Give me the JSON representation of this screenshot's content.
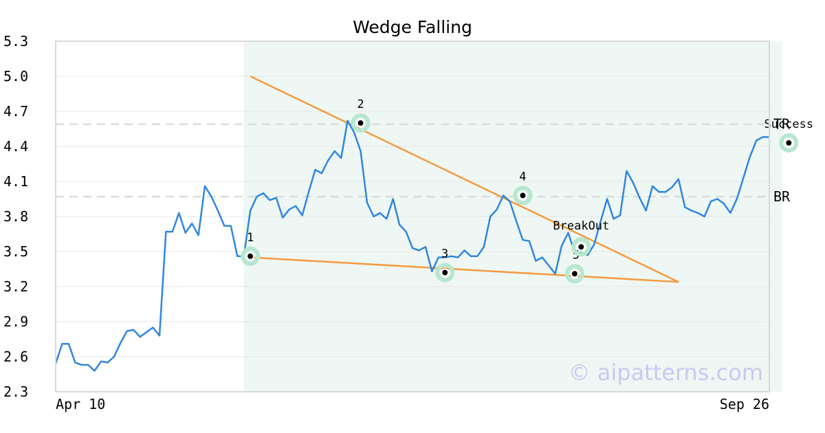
{
  "chart_data": {
    "type": "line",
    "title": "Wedge Falling",
    "xlabel": "",
    "ylabel": "",
    "x_start_label": "Apr 10",
    "x_end_label": "Sep 26",
    "ylim": [
      2.3,
      5.3
    ],
    "yticks": [
      "5.3",
      "5.0",
      "4.7",
      "4.4",
      "4.1",
      "3.8",
      "3.5",
      "3.2",
      "2.9",
      "2.6",
      "2.3"
    ],
    "grid": true,
    "series": [
      {
        "values": [
          2.54,
          2.71,
          2.71,
          2.55,
          2.53,
          2.53,
          2.48,
          2.56,
          2.55,
          2.6,
          2.72,
          2.82,
          2.83,
          2.77,
          2.81,
          2.85,
          2.78,
          3.67,
          3.67,
          3.83,
          3.66,
          3.74,
          3.64,
          4.06,
          3.97,
          3.85,
          3.72,
          3.72,
          3.46,
          3.46,
          3.85,
          3.97,
          4.0,
          3.94,
          3.96,
          3.79,
          3.86,
          3.89,
          3.81,
          4.01,
          4.2,
          4.17,
          4.28,
          4.36,
          4.3,
          4.62,
          4.52,
          4.36,
          3.92,
          3.8,
          3.83,
          3.78,
          3.95,
          3.73,
          3.67,
          3.53,
          3.51,
          3.54,
          3.33,
          3.45,
          3.45,
          3.46,
          3.45,
          3.51,
          3.46,
          3.46,
          3.54,
          3.8,
          3.86,
          3.98,
          3.93,
          3.76,
          3.6,
          3.59,
          3.42,
          3.45,
          3.38,
          3.31,
          3.55,
          3.66,
          3.49,
          3.49,
          3.47,
          3.56,
          3.76,
          3.95,
          3.78,
          3.81,
          4.19,
          4.09,
          3.96,
          3.85,
          4.06,
          4.01,
          4.01,
          4.05,
          4.12,
          3.88,
          3.85,
          3.83,
          3.8,
          3.93,
          3.95,
          3.91,
          3.83,
          3.95,
          4.13,
          4.31,
          4.45,
          4.48,
          4.48
        ],
        "color": "#2f86de"
      }
    ],
    "pattern_zone_index_range": [
      29,
      112
    ],
    "trendlines": [
      {
        "from": [
          30,
          5.0
        ],
        "to": [
          96,
          3.24
        ],
        "color": "#f39a40"
      },
      {
        "from": [
          30,
          3.45
        ],
        "to": [
          96,
          3.24
        ],
        "color": "#f39a40"
      }
    ],
    "levels": [
      {
        "label": "TR",
        "value": 4.59
      },
      {
        "label": "BR",
        "value": 3.97
      }
    ],
    "annotations": [
      {
        "label": "1",
        "index": 30,
        "value": 3.46
      },
      {
        "label": "2",
        "index": 47,
        "value": 4.6
      },
      {
        "label": "3",
        "index": 60,
        "value": 3.32
      },
      {
        "label": "4",
        "index": 72,
        "value": 3.98
      },
      {
        "label": "5",
        "index": 80,
        "value": 3.31
      },
      {
        "label": "BreakOut",
        "index": 81,
        "value": 3.54
      },
      {
        "label": "Success",
        "index": 113,
        "value": 4.43
      }
    ],
    "colors": {
      "line": "#2f86de",
      "trend": "#f39a40",
      "zone": "#eef7f3",
      "marker_halo": "#b8e6cf",
      "grid": "#e4e4e4",
      "level": "#dcdcdc"
    },
    "watermark": "© aipatterns.com"
  }
}
